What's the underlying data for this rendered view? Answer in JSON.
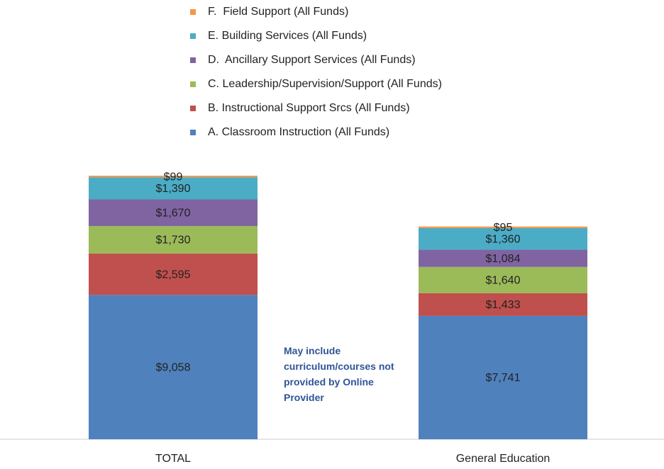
{
  "chart_data": {
    "type": "stacked_bar",
    "categories": [
      "TOTAL",
      "General Education"
    ],
    "series": [
      {
        "name": "A. Classroom Instruction (All Funds)",
        "color": "#4f81bd",
        "values": [
          9058,
          7741
        ],
        "value_labels": [
          "$9,058",
          "$7,741"
        ]
      },
      {
        "name": "B. Instructional Support Srcs (All Funds)",
        "color": "#c0504d",
        "values": [
          2595,
          1433
        ],
        "value_labels": [
          "$2,595",
          "$1,433"
        ]
      },
      {
        "name": "C. Leadership/Supervision/Support (All Funds)",
        "color": "#9bbb59",
        "values": [
          1730,
          1640
        ],
        "value_labels": [
          "$1,730",
          "$1,640"
        ]
      },
      {
        "name": "D.  Ancillary Support Services (All Funds)",
        "color": "#8064a2",
        "values": [
          1670,
          1084
        ],
        "value_labels": [
          "$1,670",
          "$1,084"
        ]
      },
      {
        "name": "E. Building Services (All Funds)",
        "color": "#4bacc6",
        "values": [
          1390,
          1360
        ],
        "value_labels": [
          "$1,390",
          "$1,360"
        ]
      },
      {
        "name": "F.  Field Support (All Funds)",
        "color": "#f79646",
        "values": [
          99,
          95
        ],
        "value_labels": [
          "$99",
          "$95"
        ]
      }
    ],
    "annotation": "May include curriculum/courses not provided by Online Provider",
    "legend": "top"
  }
}
